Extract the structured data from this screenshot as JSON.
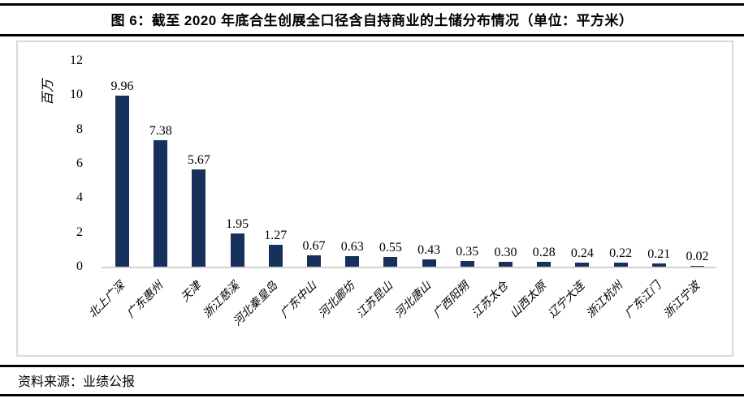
{
  "header": {
    "title": "图 6：截至 2020 年底合生创展全口径含自持商业的土储分布情况（单位：平方米）"
  },
  "footer": {
    "source": "资料来源：业绩公报"
  },
  "chart_data": {
    "type": "bar",
    "title": "图 6：截至 2020 年底合生创展全口径含自持商业的土储分布情况（单位：平方米）",
    "unit_label": "百万",
    "categories": [
      "北上广深",
      "广东惠州",
      "天津",
      "浙江慈溪",
      "河北秦皇岛",
      "广东中山",
      "河北廊坊",
      "江苏昆山",
      "河北唐山",
      "广西阳朔",
      "江苏太仓",
      "山西太原",
      "辽宁大连",
      "浙江杭州",
      "广东江门",
      "浙江宁波"
    ],
    "values": [
      9.96,
      7.38,
      5.67,
      1.95,
      1.27,
      0.67,
      0.63,
      0.55,
      0.43,
      0.35,
      0.3,
      0.28,
      0.24,
      0.22,
      0.21,
      0.02
    ],
    "value_labels": [
      "9.96",
      "7.38",
      "5.67",
      "1.95",
      "1.27",
      "0.67",
      "0.63",
      "0.55",
      "0.43",
      "0.35",
      "0.30",
      "0.28",
      "0.24",
      "0.22",
      "0.21",
      "0.02"
    ],
    "yticks": [
      0,
      2,
      4,
      6,
      8,
      10,
      12
    ],
    "ylim": [
      0,
      12
    ],
    "xlabel": "",
    "ylabel": "百万",
    "grid": false,
    "legend_position": "none",
    "bar_color": "#18305c",
    "axis_line_color": "#d2d2d2"
  },
  "colors": {
    "rule": "#000000",
    "panel_border": "#d9d9d9",
    "background": "#ffffff"
  }
}
